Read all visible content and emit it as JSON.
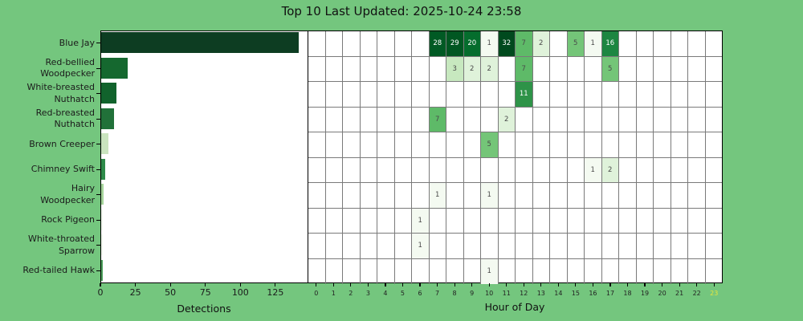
{
  "title": "Top 10 Last Updated: 2025-10-24 23:58",
  "colors": {
    "background": "#74c67e",
    "panel_background": "#ffffff",
    "panel_border": "#000000",
    "grid_line": "#7a7a7a",
    "text": "#111111",
    "cell_text_light": "#ffffff",
    "cell_text_dark": "#4a4a4a",
    "highlight_hour_label": "#e6e63c"
  },
  "bar_chart": {
    "xlabel": "Detections",
    "ticks": [
      0,
      25,
      50,
      75,
      100,
      125
    ],
    "xlim": [
      0,
      148
    ]
  },
  "heatmap": {
    "xlabel": "Hour of Day",
    "hours": [
      0,
      1,
      2,
      3,
      4,
      5,
      6,
      7,
      8,
      9,
      10,
      11,
      12,
      13,
      14,
      15,
      16,
      17,
      18,
      19,
      20,
      21,
      22,
      23
    ],
    "highlight_hour": 23
  },
  "value_colors": {
    "1": "#f4faf1",
    "2": "#dff2da",
    "3": "#c7e8bf",
    "5": "#74c578",
    "7": "#5eba68",
    "11": "#2e9348",
    "16": "#1d8641",
    "20": "#056d2d",
    "28": "#015a24",
    "29": "#015722",
    "32": "#014a1e"
  },
  "white_text_threshold": 11,
  "species": [
    {
      "name": "Blue Jay",
      "label_lines": [
        "Blue Jay"
      ],
      "count": 141,
      "bar_color": "#0d3d22",
      "hours": {
        "7": 28,
        "8": 29,
        "9": 20,
        "10": 1,
        "11": 32,
        "12": 7,
        "13": 2,
        "15": 5,
        "16": 1,
        "17": 16
      }
    },
    {
      "name": "Red-bellied Woodpecker",
      "label_lines": [
        "Red-bellied",
        "Woodpecker"
      ],
      "count": 19,
      "bar_color": "#15682f",
      "hours": {
        "8": 3,
        "9": 2,
        "10": 2,
        "12": 7,
        "17": 5
      }
    },
    {
      "name": "White-breasted Nuthatch",
      "label_lines": [
        "White-breasted",
        "Nuthatch"
      ],
      "count": 11,
      "bar_color": "#11632c",
      "hours": {
        "12": 11
      }
    },
    {
      "name": "Red-breasted Nuthatch",
      "label_lines": [
        "Red-breasted",
        "Nuthatch"
      ],
      "count": 9,
      "bar_color": "#217139",
      "hours": {
        "7": 7,
        "11": 2
      }
    },
    {
      "name": "Brown Creeper",
      "label_lines": [
        "Brown Creeper"
      ],
      "count": 5,
      "bar_color": "#c9e4be",
      "hours": {
        "10": 5
      }
    },
    {
      "name": "Chimney Swift",
      "label_lines": [
        "Chimney Swift"
      ],
      "count": 3,
      "bar_color": "#2e8b49",
      "hours": {
        "16": 1,
        "17": 2
      }
    },
    {
      "name": "Hairy Woodpecker",
      "label_lines": [
        "Hairy",
        "Woodpecker"
      ],
      "count": 2,
      "bar_color": "#a7d59c",
      "hours": {
        "7": 1,
        "10": 1
      }
    },
    {
      "name": "Rock Pigeon",
      "label_lines": [
        "Rock Pigeon"
      ],
      "count": 1,
      "bar_color": "#f3faf0",
      "hours": {
        "6": 1
      }
    },
    {
      "name": "White-throated Sparrow",
      "label_lines": [
        "White-throated",
        "Sparrow"
      ],
      "count": 1,
      "bar_color": "#f3faf0",
      "hours": {
        "6": 1
      }
    },
    {
      "name": "Red-tailed Hawk",
      "label_lines": [
        "Red-tailed Hawk"
      ],
      "count": 1,
      "bar_color": "#4da25d",
      "hours": {
        "10": 1
      }
    }
  ],
  "chart_data": [
    {
      "type": "bar",
      "orientation": "horizontal",
      "title": "Top 10 Last Updated: 2025-10-24 23:58",
      "categories": [
        "Blue Jay",
        "Red-bellied Woodpecker",
        "White-breasted Nuthatch",
        "Red-breasted Nuthatch",
        "Brown Creeper",
        "Chimney Swift",
        "Hairy Woodpecker",
        "Rock Pigeon",
        "White-throated Sparrow",
        "Red-tailed Hawk"
      ],
      "values": [
        141,
        19,
        11,
        9,
        5,
        3,
        2,
        1,
        1,
        1
      ],
      "xlabel": "Detections",
      "ylabel": "",
      "xlim": [
        0,
        148
      ],
      "xticks": [
        0,
        25,
        50,
        75,
        100,
        125
      ],
      "grid": false
    },
    {
      "type": "heatmap",
      "x": [
        0,
        1,
        2,
        3,
        4,
        5,
        6,
        7,
        8,
        9,
        10,
        11,
        12,
        13,
        14,
        15,
        16,
        17,
        18,
        19,
        20,
        21,
        22,
        23
      ],
      "xlabel": "Hour of Day",
      "y": [
        "Blue Jay",
        "Red-bellied Woodpecker",
        "White-breasted Nuthatch",
        "Red-breasted Nuthatch",
        "Brown Creeper",
        "Chimney Swift",
        "Hairy Woodpecker",
        "Rock Pigeon",
        "White-throated Sparrow",
        "Red-tailed Hawk"
      ],
      "cells": [
        {
          "species": "Blue Jay",
          "hour": 7,
          "value": 28
        },
        {
          "species": "Blue Jay",
          "hour": 8,
          "value": 29
        },
        {
          "species": "Blue Jay",
          "hour": 9,
          "value": 20
        },
        {
          "species": "Blue Jay",
          "hour": 10,
          "value": 1
        },
        {
          "species": "Blue Jay",
          "hour": 11,
          "value": 32
        },
        {
          "species": "Blue Jay",
          "hour": 12,
          "value": 7
        },
        {
          "species": "Blue Jay",
          "hour": 13,
          "value": 2
        },
        {
          "species": "Blue Jay",
          "hour": 15,
          "value": 5
        },
        {
          "species": "Blue Jay",
          "hour": 16,
          "value": 1
        },
        {
          "species": "Blue Jay",
          "hour": 17,
          "value": 16
        },
        {
          "species": "Red-bellied Woodpecker",
          "hour": 8,
          "value": 3
        },
        {
          "species": "Red-bellied Woodpecker",
          "hour": 9,
          "value": 2
        },
        {
          "species": "Red-bellied Woodpecker",
          "hour": 10,
          "value": 2
        },
        {
          "species": "Red-bellied Woodpecker",
          "hour": 12,
          "value": 7
        },
        {
          "species": "Red-bellied Woodpecker",
          "hour": 17,
          "value": 5
        },
        {
          "species": "White-breasted Nuthatch",
          "hour": 12,
          "value": 11
        },
        {
          "species": "Red-breasted Nuthatch",
          "hour": 7,
          "value": 7
        },
        {
          "species": "Red-breasted Nuthatch",
          "hour": 11,
          "value": 2
        },
        {
          "species": "Brown Creeper",
          "hour": 10,
          "value": 5
        },
        {
          "species": "Chimney Swift",
          "hour": 16,
          "value": 1
        },
        {
          "species": "Chimney Swift",
          "hour": 17,
          "value": 2
        },
        {
          "species": "Hairy Woodpecker",
          "hour": 7,
          "value": 1
        },
        {
          "species": "Hairy Woodpecker",
          "hour": 10,
          "value": 1
        },
        {
          "species": "Rock Pigeon",
          "hour": 6,
          "value": 1
        },
        {
          "species": "White-throated Sparrow",
          "hour": 6,
          "value": 1
        },
        {
          "species": "Red-tailed Hawk",
          "hour": 10,
          "value": 1
        }
      ],
      "highlighted_x_tick": 23
    }
  ]
}
